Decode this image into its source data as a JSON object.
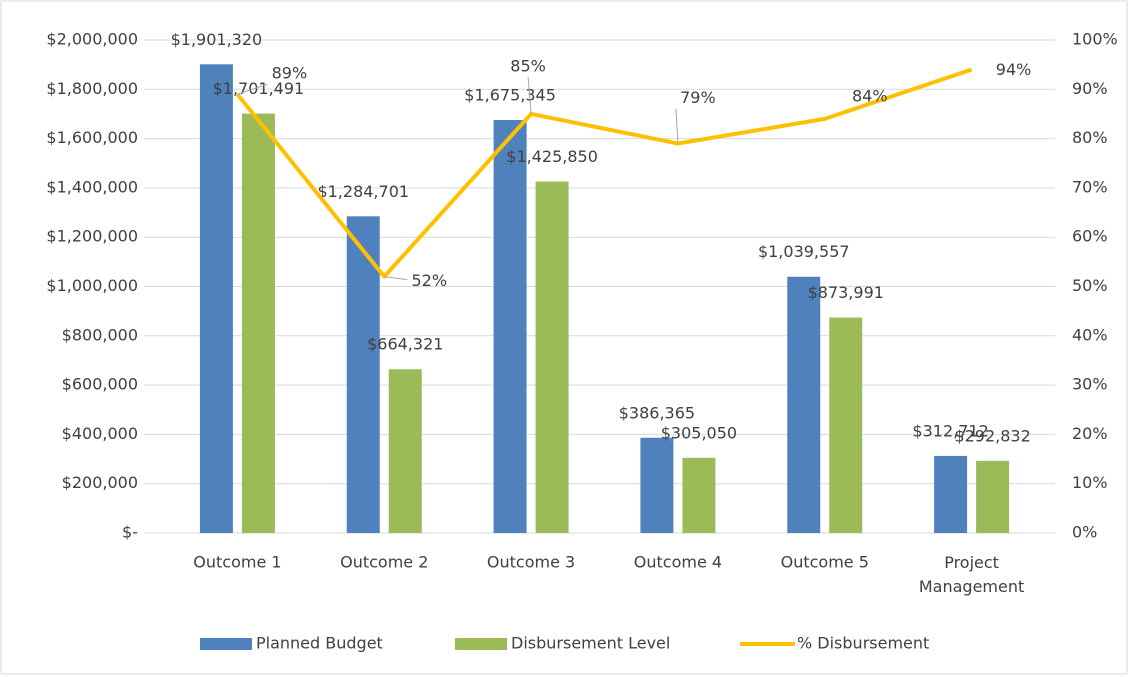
{
  "chart_data": {
    "type": "bar",
    "categories": [
      "Outcome 1",
      "Outcome 2",
      "Outcome 3",
      "Outcome 4",
      "Outcome 5",
      "Project Management"
    ],
    "series": [
      {
        "name": "Planned Budget",
        "color": "#4f81bd",
        "type": "bar",
        "values": [
          1901320,
          1284701,
          1675345,
          386365,
          1039557,
          312712
        ],
        "value_labels": [
          "$1,901,320",
          "$1,284,701",
          "$1,675,345",
          "$386,365",
          "$1,039,557",
          "$312,712"
        ]
      },
      {
        "name": "Disbursement Level",
        "color": "#9bbb59",
        "type": "bar",
        "values": [
          1701491,
          664321,
          1425850,
          305050,
          873991,
          292832
        ],
        "value_labels": [
          "$1,701,491",
          "$664,321",
          "$1,425,850",
          "$305,050",
          "$873,991",
          "$292,832"
        ]
      },
      {
        "name": "% Disbursement",
        "color": "#ffc000",
        "type": "line",
        "axis": "y2",
        "values": [
          89,
          52,
          85,
          79,
          84,
          94
        ],
        "value_labels": [
          "89%",
          "52%",
          "85%",
          "79%",
          "84%",
          "94%"
        ]
      }
    ],
    "ylim": [
      0,
      2000000
    ],
    "yticks": [
      {
        "value": 0,
        "label": "$-"
      },
      {
        "value": 200000,
        "label": "$200,000"
      },
      {
        "value": 400000,
        "label": "$400,000"
      },
      {
        "value": 600000,
        "label": "$600,000"
      },
      {
        "value": 800000,
        "label": "$800,000"
      },
      {
        "value": 1000000,
        "label": "$1,000,000"
      },
      {
        "value": 1200000,
        "label": "$1,200,000"
      },
      {
        "value": 1400000,
        "label": "$1,400,000"
      },
      {
        "value": 1600000,
        "label": "$1,600,000"
      },
      {
        "value": 1800000,
        "label": "$1,800,000"
      },
      {
        "value": 2000000,
        "label": "$2,000,000"
      }
    ],
    "y2lim": [
      0,
      100
    ],
    "y2ticks": [
      {
        "value": 0,
        "label": "0%"
      },
      {
        "value": 10,
        "label": "10%"
      },
      {
        "value": 20,
        "label": "20%"
      },
      {
        "value": 30,
        "label": "30%"
      },
      {
        "value": 40,
        "label": "40%"
      },
      {
        "value": 50,
        "label": "50%"
      },
      {
        "value": 60,
        "label": "60%"
      },
      {
        "value": 70,
        "label": "70%"
      },
      {
        "value": 80,
        "label": "80%"
      },
      {
        "value": 90,
        "label": "90%"
      },
      {
        "value": 100,
        "label": "100%"
      }
    ],
    "grid": true,
    "legend": "bottom"
  }
}
